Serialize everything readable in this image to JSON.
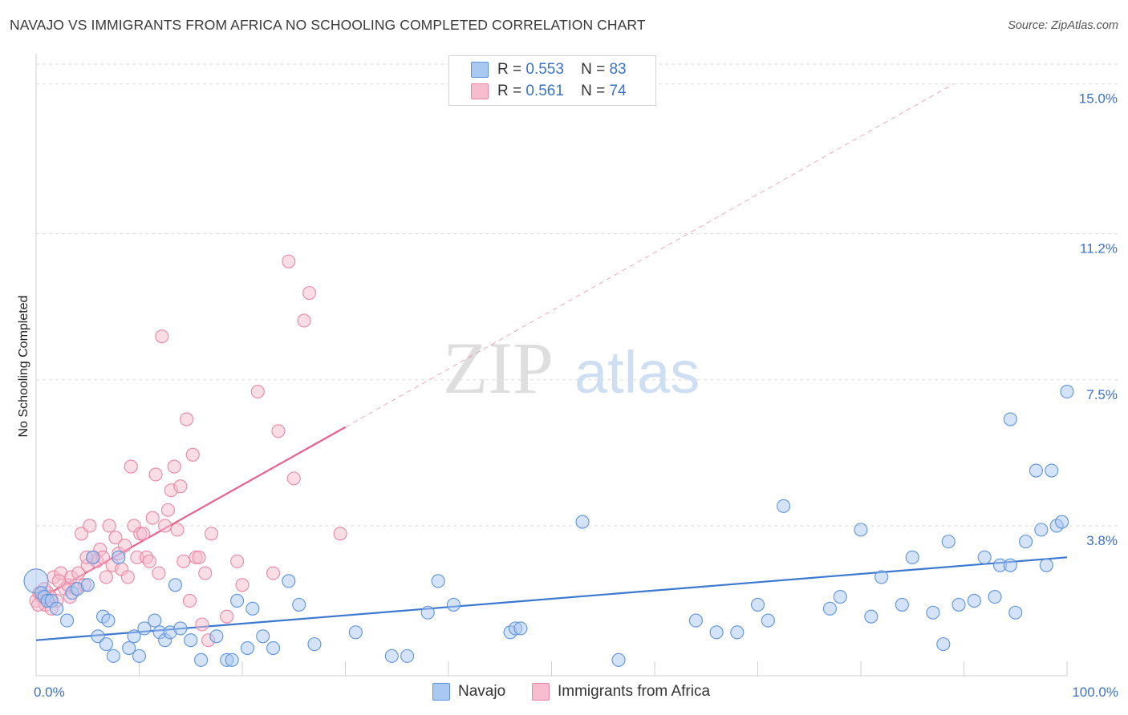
{
  "header": {
    "title": "NAVAJO VS IMMIGRANTS FROM AFRICA NO SCHOOLING COMPLETED CORRELATION CHART",
    "source": "Source: ZipAtlas.com"
  },
  "watermark": {
    "zip": "ZIP",
    "atlas": "atlas"
  },
  "legend_top": [
    {
      "r_label": "R =",
      "r_value": "0.553",
      "n_label": "N =",
      "n_value": "83"
    },
    {
      "r_label": "R =",
      "r_value": "0.561",
      "n_label": "N =",
      "n_value": "74"
    }
  ],
  "legend_bottom": [
    {
      "label": "Navajo"
    },
    {
      "label": "Immigrants from Africa"
    }
  ],
  "colors": {
    "navajo_fill": "#a9c8f2",
    "navajo_stroke": "#5d93dc",
    "navajo_line": "#3b78cf",
    "africa_fill": "#f7bccd",
    "africa_stroke": "#ea86a4",
    "africa_line": "#e5628c",
    "tick_text": "#3b72c8",
    "grid": "#dddddd"
  },
  "chart_data": {
    "type": "scatter",
    "title": "NAVAJO VS IMMIGRANTS FROM AFRICA NO SCHOOLING COMPLETED CORRELATION CHART",
    "xlabel": "",
    "ylabel": "No Schooling Completed",
    "xlim": [
      0,
      100
    ],
    "ylim": [
      0,
      15.5
    ],
    "x_tick_labels": [
      "0.0%",
      "100.0%"
    ],
    "y_ticks": [
      3.8,
      7.5,
      11.2,
      15.0
    ],
    "y_tick_labels": [
      "3.8%",
      "7.5%",
      "11.2%",
      "15.0%"
    ],
    "grid": "horizontal dashed",
    "legend_position": "top-center",
    "series": [
      {
        "name": "Navajo",
        "r": 0.553,
        "n": 83,
        "trend": {
          "x": [
            0,
            100
          ],
          "y": [
            0.9,
            3.0
          ]
        },
        "points": [
          [
            0.0,
            2.4
          ],
          [
            0.5,
            2.1
          ],
          [
            0.8,
            2.0
          ],
          [
            1.1,
            1.9
          ],
          [
            1.5,
            1.9
          ],
          [
            2.0,
            1.7
          ],
          [
            3.0,
            1.4
          ],
          [
            3.5,
            2.1
          ],
          [
            4.0,
            2.2
          ],
          [
            5.0,
            2.3
          ],
          [
            5.5,
            3.0
          ],
          [
            6.0,
            1.0
          ],
          [
            6.5,
            1.5
          ],
          [
            6.8,
            0.8
          ],
          [
            7.0,
            1.4
          ],
          [
            7.5,
            0.5
          ],
          [
            8.0,
            3.0
          ],
          [
            9.0,
            0.7
          ],
          [
            9.5,
            1.0
          ],
          [
            10.0,
            0.5
          ],
          [
            10.5,
            1.2
          ],
          [
            11.5,
            1.4
          ],
          [
            12.0,
            1.1
          ],
          [
            12.5,
            0.9
          ],
          [
            13.0,
            1.1
          ],
          [
            13.5,
            2.3
          ],
          [
            14.0,
            1.2
          ],
          [
            15.0,
            0.9
          ],
          [
            16.0,
            0.4
          ],
          [
            17.5,
            1.0
          ],
          [
            18.5,
            0.4
          ],
          [
            19.0,
            0.4
          ],
          [
            19.5,
            1.9
          ],
          [
            20.5,
            0.7
          ],
          [
            21.0,
            1.7
          ],
          [
            22.0,
            1.0
          ],
          [
            23.0,
            0.7
          ],
          [
            24.5,
            2.4
          ],
          [
            25.5,
            1.8
          ],
          [
            27.0,
            0.8
          ],
          [
            31.0,
            1.1
          ],
          [
            34.5,
            0.5
          ],
          [
            36.0,
            0.5
          ],
          [
            38.0,
            1.6
          ],
          [
            39.0,
            2.4
          ],
          [
            40.5,
            1.8
          ],
          [
            46.0,
            1.1
          ],
          [
            46.5,
            1.2
          ],
          [
            47.0,
            1.2
          ],
          [
            53.0,
            3.9
          ],
          [
            56.5,
            0.4
          ],
          [
            64.0,
            1.4
          ],
          [
            66.0,
            1.1
          ],
          [
            68.0,
            1.1
          ],
          [
            70.0,
            1.8
          ],
          [
            71.0,
            1.4
          ],
          [
            72.5,
            4.3
          ],
          [
            77.0,
            1.7
          ],
          [
            78.0,
            2.0
          ],
          [
            80.0,
            3.7
          ],
          [
            81.0,
            1.5
          ],
          [
            82.0,
            2.5
          ],
          [
            84.0,
            1.8
          ],
          [
            85.0,
            3.0
          ],
          [
            87.0,
            1.6
          ],
          [
            88.0,
            0.8
          ],
          [
            88.5,
            3.4
          ],
          [
            89.5,
            1.8
          ],
          [
            91.0,
            1.9
          ],
          [
            92.0,
            3.0
          ],
          [
            93.0,
            2.0
          ],
          [
            93.5,
            2.8
          ],
          [
            94.5,
            2.8
          ],
          [
            94.5,
            6.5
          ],
          [
            95.0,
            1.6
          ],
          [
            96.0,
            3.4
          ],
          [
            97.0,
            5.2
          ],
          [
            97.5,
            3.7
          ],
          [
            98.0,
            2.8
          ],
          [
            98.5,
            5.2
          ],
          [
            99.0,
            3.8
          ],
          [
            99.5,
            3.9
          ],
          [
            100.0,
            7.2
          ]
        ]
      },
      {
        "name": "Immigrants from Africa",
        "r": 0.561,
        "n": 74,
        "trend": {
          "x": [
            0,
            30
          ],
          "y": [
            1.9,
            6.3
          ]
        },
        "trend_extension": {
          "x": [
            30,
            89
          ],
          "y": [
            6.3,
            15.0
          ]
        },
        "points": [
          [
            0.0,
            1.9
          ],
          [
            0.3,
            2.1
          ],
          [
            0.6,
            2.0
          ],
          [
            0.9,
            1.8
          ],
          [
            1.1,
            2.1
          ],
          [
            1.4,
            2.0
          ],
          [
            1.7,
            2.5
          ],
          [
            2.0,
            1.9
          ],
          [
            2.4,
            2.6
          ],
          [
            2.8,
            2.2
          ],
          [
            3.1,
            2.3
          ],
          [
            3.4,
            2.5
          ],
          [
            3.8,
            2.2
          ],
          [
            4.1,
            2.6
          ],
          [
            4.4,
            3.6
          ],
          [
            4.7,
            2.3
          ],
          [
            5.0,
            2.8
          ],
          [
            5.2,
            3.8
          ],
          [
            5.6,
            3.0
          ],
          [
            5.9,
            2.9
          ],
          [
            6.2,
            3.2
          ],
          [
            6.5,
            3.0
          ],
          [
            6.8,
            2.5
          ],
          [
            7.1,
            3.8
          ],
          [
            7.4,
            2.8
          ],
          [
            7.7,
            3.5
          ],
          [
            8.0,
            3.1
          ],
          [
            8.3,
            2.7
          ],
          [
            8.6,
            3.3
          ],
          [
            8.9,
            2.5
          ],
          [
            9.2,
            5.3
          ],
          [
            9.5,
            3.8
          ],
          [
            9.8,
            3.0
          ],
          [
            10.1,
            3.6
          ],
          [
            10.4,
            3.6
          ],
          [
            10.7,
            3.0
          ],
          [
            11.0,
            2.9
          ],
          [
            11.3,
            4.0
          ],
          [
            11.6,
            5.1
          ],
          [
            11.9,
            2.6
          ],
          [
            12.2,
            8.6
          ],
          [
            12.5,
            3.8
          ],
          [
            12.8,
            4.2
          ],
          [
            13.1,
            4.7
          ],
          [
            13.4,
            5.3
          ],
          [
            13.7,
            3.7
          ],
          [
            14.0,
            4.8
          ],
          [
            14.3,
            2.9
          ],
          [
            14.6,
            6.5
          ],
          [
            14.9,
            1.9
          ],
          [
            15.2,
            5.6
          ],
          [
            15.5,
            3.0
          ],
          [
            15.8,
            3.0
          ],
          [
            16.1,
            1.3
          ],
          [
            16.4,
            2.6
          ],
          [
            16.7,
            0.9
          ],
          [
            17.0,
            3.6
          ],
          [
            18.5,
            1.5
          ],
          [
            19.5,
            2.9
          ],
          [
            20.0,
            2.3
          ],
          [
            21.5,
            7.2
          ],
          [
            23.0,
            2.6
          ],
          [
            23.5,
            6.2
          ],
          [
            24.5,
            10.5
          ],
          [
            25.0,
            5.0
          ],
          [
            26.0,
            9.0
          ],
          [
            26.5,
            9.7
          ],
          [
            29.5,
            3.6
          ],
          [
            0.2,
            1.8
          ],
          [
            0.8,
            2.2
          ],
          [
            1.5,
            1.7
          ],
          [
            2.2,
            2.4
          ],
          [
            3.3,
            2.0
          ],
          [
            4.9,
            3.0
          ]
        ]
      }
    ]
  }
}
